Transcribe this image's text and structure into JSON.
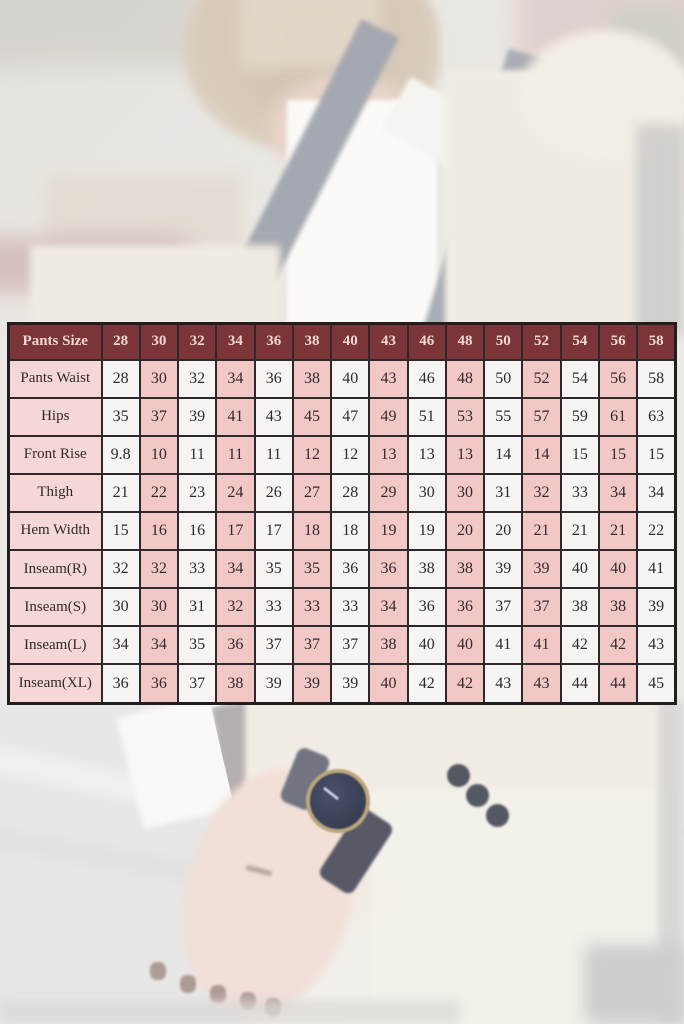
{
  "chart_data": {
    "type": "table",
    "header": [
      "Pants Size",
      "28",
      "30",
      "32",
      "34",
      "36",
      "38",
      "40",
      "43",
      "46",
      "48",
      "50",
      "52",
      "54",
      "56",
      "58"
    ],
    "rows": [
      {
        "label": "Pants Waist",
        "values": [
          "28",
          "30",
          "32",
          "34",
          "36",
          "38",
          "40",
          "43",
          "46",
          "48",
          "50",
          "52",
          "54",
          "56",
          "58"
        ]
      },
      {
        "label": "Hips",
        "values": [
          "35",
          "37",
          "39",
          "41",
          "43",
          "45",
          "47",
          "49",
          "51",
          "53",
          "55",
          "57",
          "59",
          "61",
          "63"
        ]
      },
      {
        "label": "Front Rise",
        "values": [
          "9.8",
          "10",
          "11",
          "11",
          "11",
          "12",
          "12",
          "13",
          "13",
          "13",
          "14",
          "14",
          "15",
          "15",
          "15"
        ]
      },
      {
        "label": "Thigh",
        "values": [
          "21",
          "22",
          "23",
          "24",
          "26",
          "27",
          "28",
          "29",
          "30",
          "30",
          "31",
          "32",
          "33",
          "34",
          "34"
        ]
      },
      {
        "label": "Hem Width",
        "values": [
          "15",
          "16",
          "16",
          "17",
          "17",
          "18",
          "18",
          "19",
          "19",
          "20",
          "20",
          "21",
          "21",
          "21",
          "22"
        ]
      },
      {
        "label": "Inseam(R)",
        "values": [
          "32",
          "32",
          "33",
          "34",
          "35",
          "35",
          "36",
          "36",
          "38",
          "38",
          "39",
          "39",
          "40",
          "40",
          "41"
        ]
      },
      {
        "label": "Inseam(S)",
        "values": [
          "30",
          "30",
          "31",
          "32",
          "33",
          "33",
          "33",
          "34",
          "36",
          "36",
          "37",
          "37",
          "38",
          "38",
          "39"
        ]
      },
      {
        "label": "Inseam(L)",
        "values": [
          "34",
          "34",
          "35",
          "36",
          "37",
          "37",
          "37",
          "38",
          "40",
          "40",
          "41",
          "41",
          "42",
          "42",
          "43"
        ]
      },
      {
        "label": "Inseam(XL)",
        "values": [
          "36",
          "36",
          "37",
          "38",
          "39",
          "39",
          "39",
          "40",
          "42",
          "42",
          "43",
          "43",
          "44",
          "44",
          "45"
        ]
      }
    ]
  },
  "colors": {
    "header_bg": "#7b3538",
    "header_text": "#eed8d4",
    "label_bg": "#f4d7d6",
    "pink_cell_bg": "#f2c8c7",
    "white_cell_bg": "#f6f5f3",
    "grid_border": "#2e282a",
    "body_text": "#33292b"
  }
}
